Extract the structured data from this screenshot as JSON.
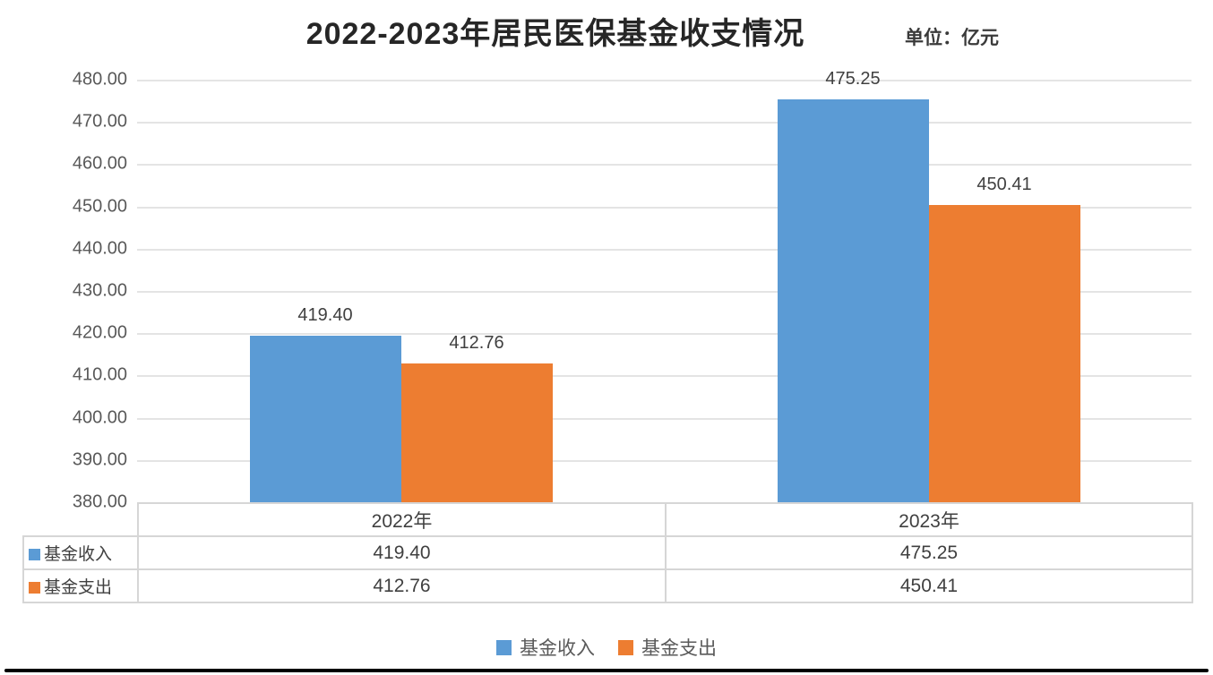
{
  "header": {
    "title": "2022-2023年居民医保基金收支情况",
    "unit_label": "单位：亿元"
  },
  "chart_data": {
    "type": "bar",
    "title": "2022-2023年居民医保基金收支情况",
    "unit": "亿元",
    "categories": [
      "2022年",
      "2023年"
    ],
    "series": [
      {
        "name": "基金收入",
        "color": "#5B9BD5",
        "values": [
          419.4,
          475.25
        ]
      },
      {
        "name": "基金支出",
        "color": "#ED7D31",
        "values": [
          412.76,
          450.41
        ]
      }
    ],
    "value_labels": [
      [
        "419.40",
        "475.25"
      ],
      [
        "412.76",
        "450.41"
      ]
    ],
    "ylim": [
      380,
      480
    ],
    "ytick_step": 10,
    "ytick_labels": [
      "480.00",
      "470.00",
      "460.00",
      "450.00",
      "440.00",
      "430.00",
      "420.00",
      "410.00",
      "400.00",
      "390.00",
      "380.00"
    ],
    "grid": true,
    "legend_position": "bottom",
    "data_table_shown": true
  },
  "table": {
    "column_headers": [
      "2022年",
      "2023年"
    ],
    "rows": [
      {
        "label": "基金收入",
        "cells": [
          "419.40",
          "475.25"
        ]
      },
      {
        "label": "基金支出",
        "cells": [
          "412.76",
          "450.41"
        ]
      }
    ]
  },
  "legend": {
    "items": [
      {
        "label": "基金收入",
        "color": "#5B9BD5"
      },
      {
        "label": "基金支出",
        "color": "#ED7D31"
      }
    ]
  },
  "colors": {
    "income": "#5B9BD5",
    "expense": "#ED7D31",
    "gridline": "#E4E4E4",
    "text": "#404040",
    "tick_text": "#595959"
  }
}
